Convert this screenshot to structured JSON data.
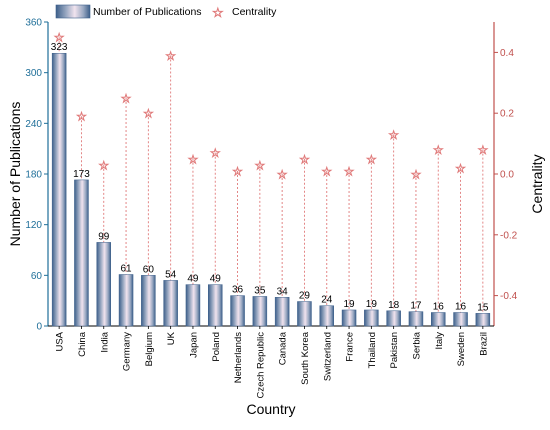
{
  "chart_data": {
    "type": "bar",
    "categories": [
      "USA",
      "China",
      "India",
      "Germany",
      "Belgium",
      "UK",
      "Japan",
      "Poland",
      "Netherlands",
      "Czech Republic",
      "Canada",
      "South Korea",
      "Switzerland",
      "France",
      "Thailand",
      "Pakistan",
      "Serbia",
      "Italy",
      "Sweden",
      "Brazil"
    ],
    "series": [
      {
        "name": "Number of Publications",
        "type": "bar",
        "axis": "left",
        "color": "#3d5f8a",
        "values": [
          323,
          173,
          99,
          61,
          60,
          54,
          49,
          49,
          36,
          35,
          34,
          29,
          24,
          19,
          19,
          18,
          17,
          16,
          16,
          15
        ]
      },
      {
        "name": "Centrality",
        "type": "scatter-drop",
        "axis": "right",
        "color": "#e07a7a",
        "values": [
          0.45,
          0.19,
          0.03,
          0.25,
          0.2,
          0.39,
          0.05,
          0.07,
          0.01,
          0.03,
          0.0,
          0.05,
          0.01,
          0.01,
          0.05,
          0.13,
          0.0,
          0.08,
          0.02,
          0.08
        ]
      }
    ],
    "xlabel": "Country",
    "ylabel": "Number of Publications",
    "y2label": "Centrality",
    "ylim": [
      0,
      360
    ],
    "y2lim": [
      -0.5,
      0.5
    ],
    "yticks": [
      "0",
      "60",
      "120",
      "180",
      "240",
      "300",
      "360"
    ],
    "y2ticks": [
      "-0.4",
      "-0.2",
      "0.0",
      "0.2",
      "0.4"
    ],
    "legend": {
      "placement": "top-left",
      "entries": [
        "Number of Publications",
        "Centrality"
      ]
    },
    "grid": false,
    "colors": {
      "left_axis": "#1f6f99",
      "right_axis": "#c0504d",
      "bar_dark": "#3d5f8a",
      "bar_light": "#f1e3ee",
      "marker": "#e07a7a"
    }
  }
}
